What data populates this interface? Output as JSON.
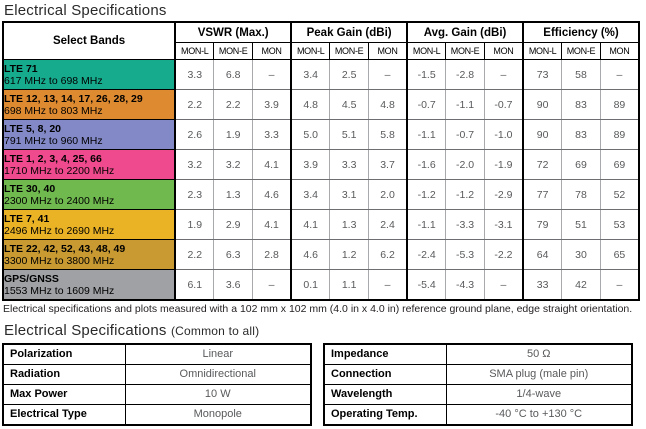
{
  "page": {
    "title": "Electrical Specifications",
    "note": "Electrical specifications and plots measured with a 102 mm x 102 mm (4.0 in x 4.0 in) reference ground plane, edge straight orientation.",
    "title2_main": "Electrical Specifications",
    "title2_suffix": "(Common to all)"
  },
  "main_table": {
    "corner_header": "Select Bands",
    "groups": [
      {
        "label": "VSWR (Max.)"
      },
      {
        "label": "Peak Gain (dBi)"
      },
      {
        "label": "Avg. Gain (dBi)"
      },
      {
        "label": "Efficiency (%)"
      }
    ],
    "sub_headers": [
      "MON-L",
      "MON-E",
      "MON"
    ],
    "rows": [
      {
        "band": "LTE 71",
        "range": "617 MHz to 698 MHz",
        "color": "#17ab8e",
        "vswr": [
          "3.3",
          "6.8",
          "–"
        ],
        "peak_gain": [
          "3.4",
          "2.5",
          "–"
        ],
        "avg_gain": [
          "-1.5",
          "-2.8",
          "–"
        ],
        "efficiency": [
          "73",
          "58",
          "–"
        ]
      },
      {
        "band": "LTE 12, 13, 14, 17, 26, 28, 29",
        "range": "698 MHz to 803 MHz",
        "color": "#de8a31",
        "vswr": [
          "2.2",
          "2.2",
          "3.9"
        ],
        "peak_gain": [
          "4.8",
          "4.5",
          "4.8"
        ],
        "avg_gain": [
          "-0.7",
          "-1.1",
          "-0.7"
        ],
        "efficiency": [
          "90",
          "83",
          "89"
        ]
      },
      {
        "band": "LTE 5, 8, 20",
        "range": "791 MHz to 960 MHz",
        "color": "#8389c7",
        "vswr": [
          "2.6",
          "1.9",
          "3.3"
        ],
        "peak_gain": [
          "5.0",
          "5.1",
          "5.8"
        ],
        "avg_gain": [
          "-1.1",
          "-0.7",
          "-1.0"
        ],
        "efficiency": [
          "90",
          "83",
          "89"
        ]
      },
      {
        "band": "LTE 1, 2, 3, 4, 25, 66",
        "range": "1710 MHz to 2200 MHz",
        "color": "#ef4a8d",
        "vswr": [
          "3.2",
          "3.2",
          "4.1"
        ],
        "peak_gain": [
          "3.9",
          "3.3",
          "3.7"
        ],
        "avg_gain": [
          "-1.6",
          "-2.0",
          "-1.9"
        ],
        "efficiency": [
          "72",
          "69",
          "69"
        ]
      },
      {
        "band": "LTE 30, 40",
        "range": "2300 MHz to 2400 MHz",
        "color": "#6fb94f",
        "vswr": [
          "2.3",
          "1.3",
          "4.6"
        ],
        "peak_gain": [
          "3.4",
          "3.1",
          "2.0"
        ],
        "avg_gain": [
          "-1.2",
          "-1.2",
          "-2.9"
        ],
        "efficiency": [
          "77",
          "78",
          "52"
        ]
      },
      {
        "band": "LTE 7, 41",
        "range": "2496 MHz to 2690 MHz",
        "color": "#eab326",
        "vswr": [
          "1.9",
          "2.9",
          "4.1"
        ],
        "peak_gain": [
          "4.1",
          "1.3",
          "2.4"
        ],
        "avg_gain": [
          "-1.1",
          "-3.3",
          "-3.1"
        ],
        "efficiency": [
          "79",
          "51",
          "53"
        ]
      },
      {
        "band": "LTE 22, 42, 52, 43, 48, 49",
        "range": "3300 MHz to 3800 MHz",
        "color": "#c99a32",
        "vswr": [
          "2.2",
          "6.3",
          "2.8"
        ],
        "peak_gain": [
          "4.6",
          "1.2",
          "6.2"
        ],
        "avg_gain": [
          "-2.4",
          "-5.3",
          "-2.2"
        ],
        "efficiency": [
          "64",
          "30",
          "65"
        ]
      },
      {
        "band": "GPS/GNSS",
        "range": "1553 MHz to 1609 MHz",
        "color": "#9fa1a4",
        "vswr": [
          "6.1",
          "3.6",
          "–"
        ],
        "peak_gain": [
          "0.1",
          "1.1",
          "–"
        ],
        "avg_gain": [
          "-5.4",
          "-4.3",
          "–"
        ],
        "efficiency": [
          "33",
          "42",
          "–"
        ]
      }
    ]
  },
  "common_tables": {
    "left": [
      {
        "label": "Polarization",
        "value": "Linear"
      },
      {
        "label": "Radiation",
        "value": "Omnidirectional"
      },
      {
        "label": "Max Power",
        "value": "10 W"
      },
      {
        "label": "Electrical Type",
        "value": "Monopole"
      }
    ],
    "right": [
      {
        "label": "Impedance",
        "value": "50 Ω"
      },
      {
        "label": "Connection",
        "value": "SMA plug (male pin)"
      },
      {
        "label": "Wavelength",
        "value": "1/4-wave"
      },
      {
        "label": "Operating Temp.",
        "value": "-40 °C to +130 °C"
      }
    ]
  }
}
